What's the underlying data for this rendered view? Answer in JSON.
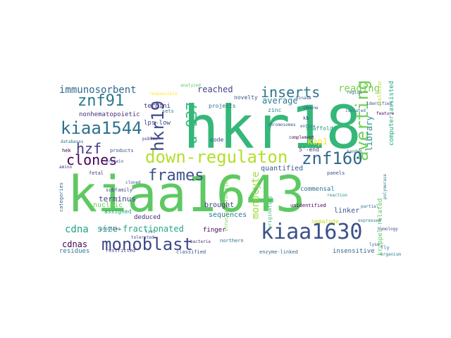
{
  "words": [
    {
      "text": "kiaa1643",
      "color": "#5ec962"
    },
    {
      "text": "hkr18",
      "color": "#35b779"
    },
    {
      "text": "kiaa1630",
      "color": "#3b528b"
    },
    {
      "text": "down-regulaton",
      "color": "#b5de2b"
    },
    {
      "text": "monoblast",
      "color": "#3e4989"
    },
    {
      "text": "kiaa1544",
      "color": "#2c728e"
    },
    {
      "text": "averting",
      "color": "#6ece58"
    },
    {
      "text": "znf160",
      "color": "#31688e"
    },
    {
      "text": "hkr19",
      "color": "#3e4a89"
    },
    {
      "text": "znf91",
      "color": "#2a788e"
    },
    {
      "text": "clones",
      "color": "#440154"
    },
    {
      "text": "frames",
      "color": "#3b528b"
    },
    {
      "text": "hzf",
      "color": "#443983"
    },
    {
      "text": "u-937",
      "color": "#35b779"
    },
    {
      "text": "inserts",
      "color": "#2c728e"
    },
    {
      "text": "immunosorbent",
      "color": "#31688e"
    },
    {
      "text": "reading",
      "color": "#7ad151"
    },
    {
      "text": "monocyte",
      "color": "#9fda3a"
    },
    {
      "text": "library",
      "color": "#21918c"
    },
    {
      "text": "cdna",
      "color": "#1fa187"
    },
    {
      "text": "size-fractionated",
      "color": "#22a884"
    },
    {
      "text": "cdnas",
      "color": "#440154"
    },
    {
      "text": "average",
      "color": "#2a788e"
    },
    {
      "text": "reached",
      "color": "#414487"
    },
    {
      "text": "kap1",
      "color": "#fde725"
    },
    {
      "text": "terminus",
      "color": "#3e4989"
    },
    {
      "text": "quantified",
      "color": "#38588c"
    },
    {
      "text": "brought",
      "color": "#46327e"
    },
    {
      "text": "nonhematopoietic",
      "color": "#472f7d"
    },
    {
      "text": "nucleic",
      "color": "#6ece58"
    },
    {
      "text": "termini",
      "color": "#46337e"
    },
    {
      "text": "lps-low",
      "color": "#3e4989"
    },
    {
      "text": "sequences",
      "color": "#2a788e"
    },
    {
      "text": "linker",
      "color": "#3b528b"
    },
    {
      "text": "finger",
      "color": "#440154"
    },
    {
      "text": "commensal",
      "color": "#2c728e"
    },
    {
      "text": "insensitive",
      "color": "#33638d"
    },
    {
      "text": "kruppel-related",
      "color": "#5ec962"
    },
    {
      "text": "computer-assisted",
      "color": "#21a585"
    },
    {
      "text": "nematode",
      "color": "#c2df23"
    },
    {
      "text": "deduced",
      "color": "#472a7a"
    },
    {
      "text": "assigned",
      "color": "#20a486"
    },
    {
      "text": "5'-end",
      "color": "#453882"
    },
    {
      "text": "zinc",
      "color": "#287c8e"
    },
    {
      "text": "scaffold",
      "color": "#1e9c89"
    },
    {
      "text": "novelty",
      "color": "#3b528b"
    },
    {
      "text": "projects",
      "color": "#2c728e"
    },
    {
      "text": "code",
      "color": "#414487"
    },
    {
      "text": "subfamily",
      "color": "#3e4a89"
    },
    {
      "text": "categories",
      "color": "#2f6b8e"
    },
    {
      "text": "residues",
      "color": "#2a788e"
    },
    {
      "text": "restricted",
      "color": "#46337e"
    },
    {
      "text": "classified",
      "color": "#3b528b"
    },
    {
      "text": "northern",
      "color": "#2c728e"
    },
    {
      "text": "panels",
      "color": "#3e4989"
    },
    {
      "text": "unidentified",
      "color": "#440154"
    },
    {
      "text": "enzyme-linked",
      "color": "#31688e"
    },
    {
      "text": "fetal",
      "color": "#443983"
    },
    {
      "text": "products",
      "color": "#3b528b"
    },
    {
      "text": "hek",
      "color": "#440154"
    },
    {
      "text": "sets",
      "color": "#2c728e"
    },
    {
      "text": "public",
      "color": "#46337e"
    },
    {
      "text": "tolerated",
      "color": "#3e4989"
    },
    {
      "text": "list",
      "color": "#2a788e"
    },
    {
      "text": "entire",
      "color": "#31688e"
    },
    {
      "text": "tandem",
      "color": "#2c728e"
    },
    {
      "text": "reaction",
      "color": "#21918c"
    },
    {
      "text": "profiles",
      "color": "#3e4989"
    },
    {
      "text": "fly",
      "color": "#2a788e"
    },
    {
      "text": "bacteria",
      "color": "#46337e"
    },
    {
      "text": "originating",
      "color": "#35b779"
    },
    {
      "text": "kb",
      "color": "#414487"
    },
    {
      "text": "immune",
      "color": "#3b528b"
    },
    {
      "text": "complement",
      "color": "#440154"
    },
    {
      "text": "chromosomes",
      "color": "#3b528b"
    },
    {
      "text": "responsible",
      "color": "#fde725"
    },
    {
      "text": "homology",
      "color": "#3e4989"
    },
    {
      "text": "expressed",
      "color": "#2a788e"
    },
    {
      "text": "region",
      "color": "#31688e"
    },
    {
      "text": "partial",
      "color": "#2c728e"
    },
    {
      "text": "amino",
      "color": "#46337e"
    },
    {
      "text": "polymerase",
      "color": "#2a788e"
    },
    {
      "text": "structure/function",
      "color": "#7ad151"
    },
    {
      "text": "kinase",
      "color": "#3e4989"
    },
    {
      "text": "isolated",
      "color": "#2c728e"
    },
    {
      "text": "identified",
      "color": "#3b528b"
    },
    {
      "text": "analyzed",
      "color": "#5ec962"
    },
    {
      "text": "feature",
      "color": "#440154"
    },
    {
      "text": "databases",
      "color": "#2c728e"
    },
    {
      "text": "protein",
      "color": "#3e4989"
    },
    {
      "text": "evolutionarily",
      "color": "#b5de2b"
    },
    {
      "text": "organism",
      "color": "#2a788e"
    },
    {
      "text": "cloned",
      "color": "#3b528b"
    },
    {
      "text": "lyse",
      "color": "#31688e"
    }
  ]
}
